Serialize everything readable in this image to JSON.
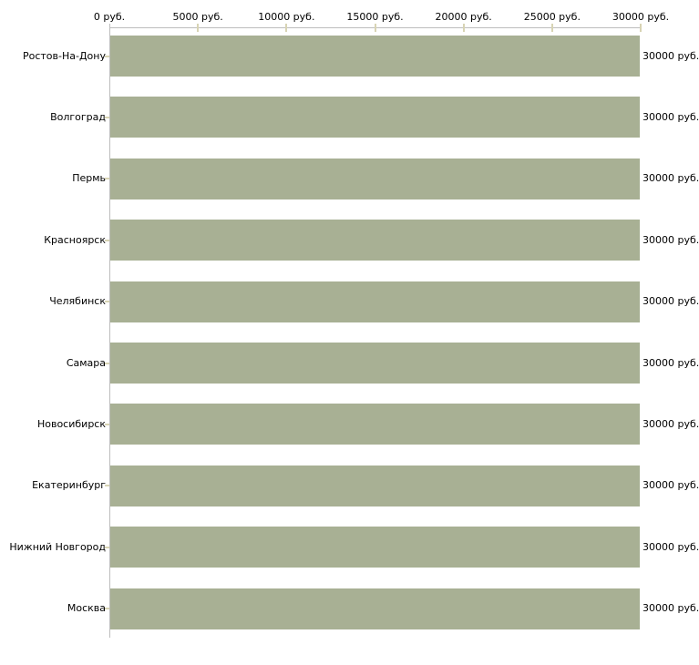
{
  "chart_data": {
    "type": "bar",
    "orientation": "horizontal",
    "title": "",
    "xlabel": "",
    "ylabel": "",
    "categories": [
      "Ростов-На-Дону",
      "Волгоград",
      "Пермь",
      "Красноярск",
      "Челябинск",
      "Самара",
      "Новосибирск",
      "Екатеринбург",
      "Нижний Новгород",
      "Москва"
    ],
    "values": [
      30000,
      30000,
      30000,
      30000,
      30000,
      30000,
      30000,
      30000,
      30000,
      30000
    ],
    "value_labels": [
      "30000 руб.",
      "30000 руб.",
      "30000 руб.",
      "30000 руб.",
      "30000 руб.",
      "30000 руб.",
      "30000 руб.",
      "30000 руб.",
      "30000 руб.",
      "30000 руб."
    ],
    "x_ticks": [
      0,
      5000,
      10000,
      15000,
      20000,
      25000,
      30000
    ],
    "x_tick_labels": [
      "0 руб.",
      "5000 руб.",
      "10000 руб.",
      "15000 руб.",
      "20000 руб.",
      "25000 руб.",
      "30000 руб."
    ],
    "xlim": [
      0,
      30000
    ],
    "grid": false,
    "legend": false,
    "axis_position": "top",
    "colors": {
      "bar": "#a8b094",
      "axis": "#bdbdbd",
      "tick": "#d8d4b4",
      "text": "#000000",
      "background": "#ffffff"
    }
  }
}
